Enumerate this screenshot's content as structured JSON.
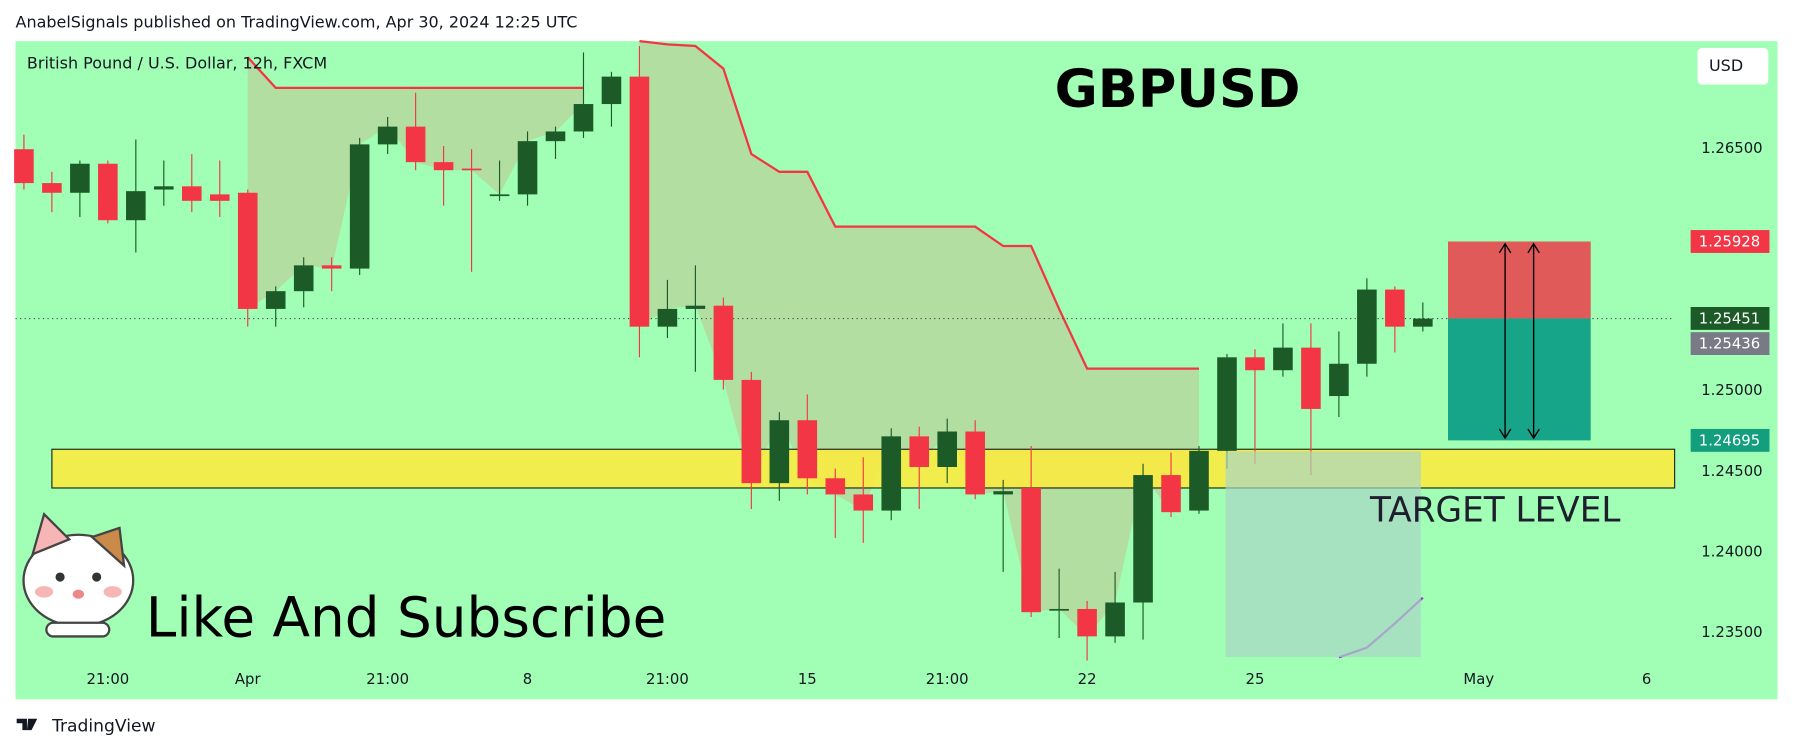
{
  "header": "AnabelSignals published on TradingView.com, Apr 30, 2024 12:25 UTC",
  "footer": "TradingView",
  "chart_data": {
    "type": "candlestick",
    "symbol": "British Pound / U.S. Dollar, 12h, FXCM",
    "title": "GBPUSD",
    "currency": "USD",
    "annotations": [
      "TARGET LEVEL",
      "Like And Subscribe"
    ],
    "background": "#a0ffb4",
    "up_color": "#1c5a27",
    "down_color": "#f23645",
    "open": [
      1.265,
      1.2629,
      1.2623,
      1.2641,
      1.2606,
      1.2625,
      1.2627,
      1.2622,
      1.2623,
      1.2551,
      1.2562,
      1.2578,
      1.2576,
      1.2653,
      1.2664,
      1.2642,
      1.2638,
      1.2621,
      1.2622,
      1.2655,
      1.2661,
      1.2678,
      1.2695,
      1.254,
      1.2551,
      1.2553,
      1.2507,
      1.2443,
      1.2482,
      1.2446,
      1.2436,
      1.2426,
      1.2472,
      1.2453,
      1.2475,
      1.2436,
      1.244,
      1.2364,
      1.2365,
      1.2348,
      1.2369,
      1.2448,
      1.2426,
      1.2463,
      1.2521,
      1.2513,
      1.2527,
      1.2497,
      1.2517,
      1.2563,
      1.254
    ],
    "high": [
      1.2659,
      1.2636,
      1.2643,
      1.2643,
      1.2656,
      1.2643,
      1.2647,
      1.2643,
      1.2625,
      1.2565,
      1.2583,
      1.2583,
      1.2657,
      1.267,
      1.2685,
      1.2652,
      1.265,
      1.2643,
      1.2661,
      1.2664,
      1.271,
      1.2698,
      1.2714,
      1.2569,
      1.2578,
      1.2558,
      1.2512,
      1.2487,
      1.2498,
      1.2452,
      1.2459,
      1.2477,
      1.2478,
      1.2483,
      1.2482,
      1.2445,
      1.2466,
      1.239,
      1.237,
      1.2388,
      1.2455,
      1.2462,
      1.2466,
      1.2523,
      1.2526,
      1.2542,
      1.2542,
      1.2537,
      1.257,
      1.2565,
      1.2555
    ],
    "low": [
      1.2625,
      1.2611,
      1.2608,
      1.2604,
      1.2586,
      1.2615,
      1.2611,
      1.2608,
      1.254,
      1.254,
      1.2552,
      1.2562,
      1.2572,
      1.2647,
      1.2637,
      1.2615,
      1.2574,
      1.2618,
      1.2615,
      1.2644,
      1.2657,
      1.2664,
      1.2521,
      1.2533,
      1.2512,
      1.2501,
      1.2427,
      1.2432,
      1.2436,
      1.2409,
      1.2406,
      1.242,
      1.2427,
      1.2443,
      1.2433,
      1.2388,
      1.236,
      1.2347,
      1.2333,
      1.2344,
      1.2346,
      1.2422,
      1.2424,
      1.2452,
      1.2455,
      1.2509,
      1.2448,
      1.2484,
      1.2509,
      1.2524,
      1.2537
    ],
    "close": [
      1.2629,
      1.2623,
      1.2641,
      1.2606,
      1.2624,
      1.2627,
      1.2618,
      1.2618,
      1.2551,
      1.2562,
      1.2578,
      1.2576,
      1.2653,
      1.2664,
      1.2642,
      1.2637,
      1.2637,
      1.2622,
      1.2655,
      1.2661,
      1.2678,
      1.2695,
      1.254,
      1.2551,
      1.2553,
      1.2507,
      1.2443,
      1.2482,
      1.2446,
      1.2436,
      1.2426,
      1.2472,
      1.2453,
      1.2475,
      1.2436,
      1.2438,
      1.2363,
      1.2365,
      1.2348,
      1.2369,
      1.2448,
      1.2425,
      1.2463,
      1.2521,
      1.2513,
      1.2527,
      1.2489,
      1.2517,
      1.2563,
      1.254,
      1.2545
    ],
    "lines": [
      {
        "color": "#f23645",
        "values": [
          null,
          null,
          null,
          null,
          null,
          null,
          null,
          null,
          1.2707,
          1.2688,
          1.2688,
          1.2688,
          1.2688,
          1.2688,
          1.2688,
          1.2688,
          1.2688,
          1.2688,
          1.2688,
          1.2688,
          1.2688,
          null,
          1.2717,
          1.2715,
          1.2714,
          1.27,
          1.2647,
          1.2636,
          1.2636,
          1.2602,
          1.2602,
          1.2602,
          1.2602,
          1.2602,
          1.2602,
          1.259,
          1.259,
          1.2551,
          1.2514,
          1.2514,
          1.2514,
          1.2514,
          1.2514,
          null,
          null,
          null,
          null,
          null,
          null,
          null,
          null
        ]
      },
      {
        "color": "#9c3ccf",
        "values": [
          null,
          null,
          null,
          null,
          null,
          null,
          null,
          null,
          null,
          null,
          null,
          null,
          null,
          null,
          null,
          null,
          null,
          null,
          null,
          null,
          null,
          null,
          null,
          null,
          null,
          null,
          null,
          null,
          null,
          null,
          null,
          null,
          null,
          null,
          null,
          null,
          null,
          null,
          null,
          null,
          null,
          null,
          null,
          null,
          null,
          null,
          null,
          1.2335,
          1.2341,
          1.2356,
          1.2372
        ]
      }
    ],
    "zone": {
      "low": 1.244,
      "high": 1.2464,
      "x": [
        1,
        59
      ],
      "color": "#ffeb3b"
    },
    "position": {
      "x": [
        50.9,
        56
      ]
    },
    "price_labels": [
      {
        "value": 1.25928,
        "color": "#f23645"
      },
      {
        "value": 1.25451,
        "color": "#1c5a27"
      },
      {
        "value": 1.25436,
        "color": "#787b86"
      },
      {
        "value": 1.24695,
        "color": "#139e7e"
      }
    ],
    "xlim": [
      -0.3,
      59
    ],
    "ylim": [
      1.2309,
      1.2717
    ],
    "xticks": [
      {
        "value": 3,
        "label": "21:00"
      },
      {
        "value": 8,
        "label": "Apr"
      },
      {
        "value": 13,
        "label": "21:00"
      },
      {
        "value": 18,
        "label": "8"
      },
      {
        "value": 23,
        "label": "21:00"
      },
      {
        "value": 28,
        "label": "15"
      },
      {
        "value": 33,
        "label": "21:00"
      },
      {
        "value": 38,
        "label": "22"
      },
      {
        "value": 44,
        "label": "25"
      },
      {
        "value": 52,
        "label": "May"
      },
      {
        "value": 58,
        "label": "6"
      }
    ],
    "yticks": [
      {
        "value": 1.235,
        "label": "1.23500"
      },
      {
        "value": 1.24,
        "label": "1.24000"
      },
      {
        "value": 1.245,
        "label": "1.24500"
      },
      {
        "value": 1.25,
        "label": "1.25000"
      },
      {
        "value": 1.265,
        "label": "1.26500"
      }
    ]
  }
}
